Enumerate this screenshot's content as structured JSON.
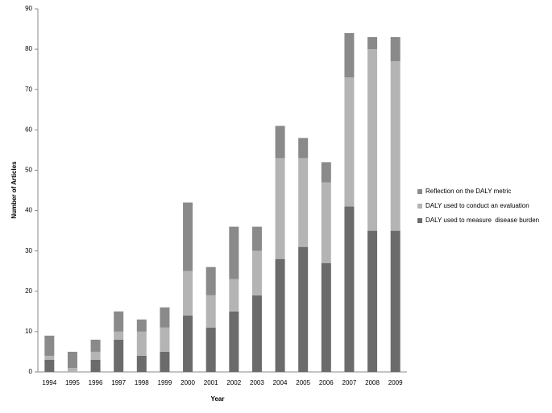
{
  "chart_data": {
    "type": "stacked_bar",
    "x_label": "Year",
    "y_label": "Number of Articles",
    "categories": [
      "1994",
      "1995",
      "1996",
      "1997",
      "1998",
      "1999",
      "2000",
      "2001",
      "2002",
      "2003",
      "2004",
      "2005",
      "2006",
      "2007",
      "2008",
      "2009"
    ],
    "series": [
      {
        "name": "DALY used to measure  disease burden",
        "color": "#6b6b6b",
        "values": [
          3,
          0,
          3,
          8,
          4,
          5,
          14,
          11,
          15,
          19,
          28,
          31,
          27,
          41,
          35,
          35
        ]
      },
      {
        "name": "DALY used to conduct an evaluation",
        "color": "#b4b4b4",
        "values": [
          1,
          1,
          2,
          2,
          6,
          6,
          11,
          8,
          8,
          11,
          25,
          22,
          20,
          32,
          45,
          42
        ]
      },
      {
        "name": "Reflection on the DALY metric",
        "color": "#8a8a8a",
        "values": [
          5,
          4,
          3,
          5,
          3,
          5,
          17,
          7,
          13,
          6,
          8,
          5,
          5,
          11,
          3,
          6
        ]
      }
    ],
    "ylim": [
      0,
      90
    ],
    "yticks": [
      0,
      10,
      20,
      30,
      40,
      50,
      60,
      70,
      80,
      90
    ],
    "grid": false,
    "legend": "right"
  }
}
